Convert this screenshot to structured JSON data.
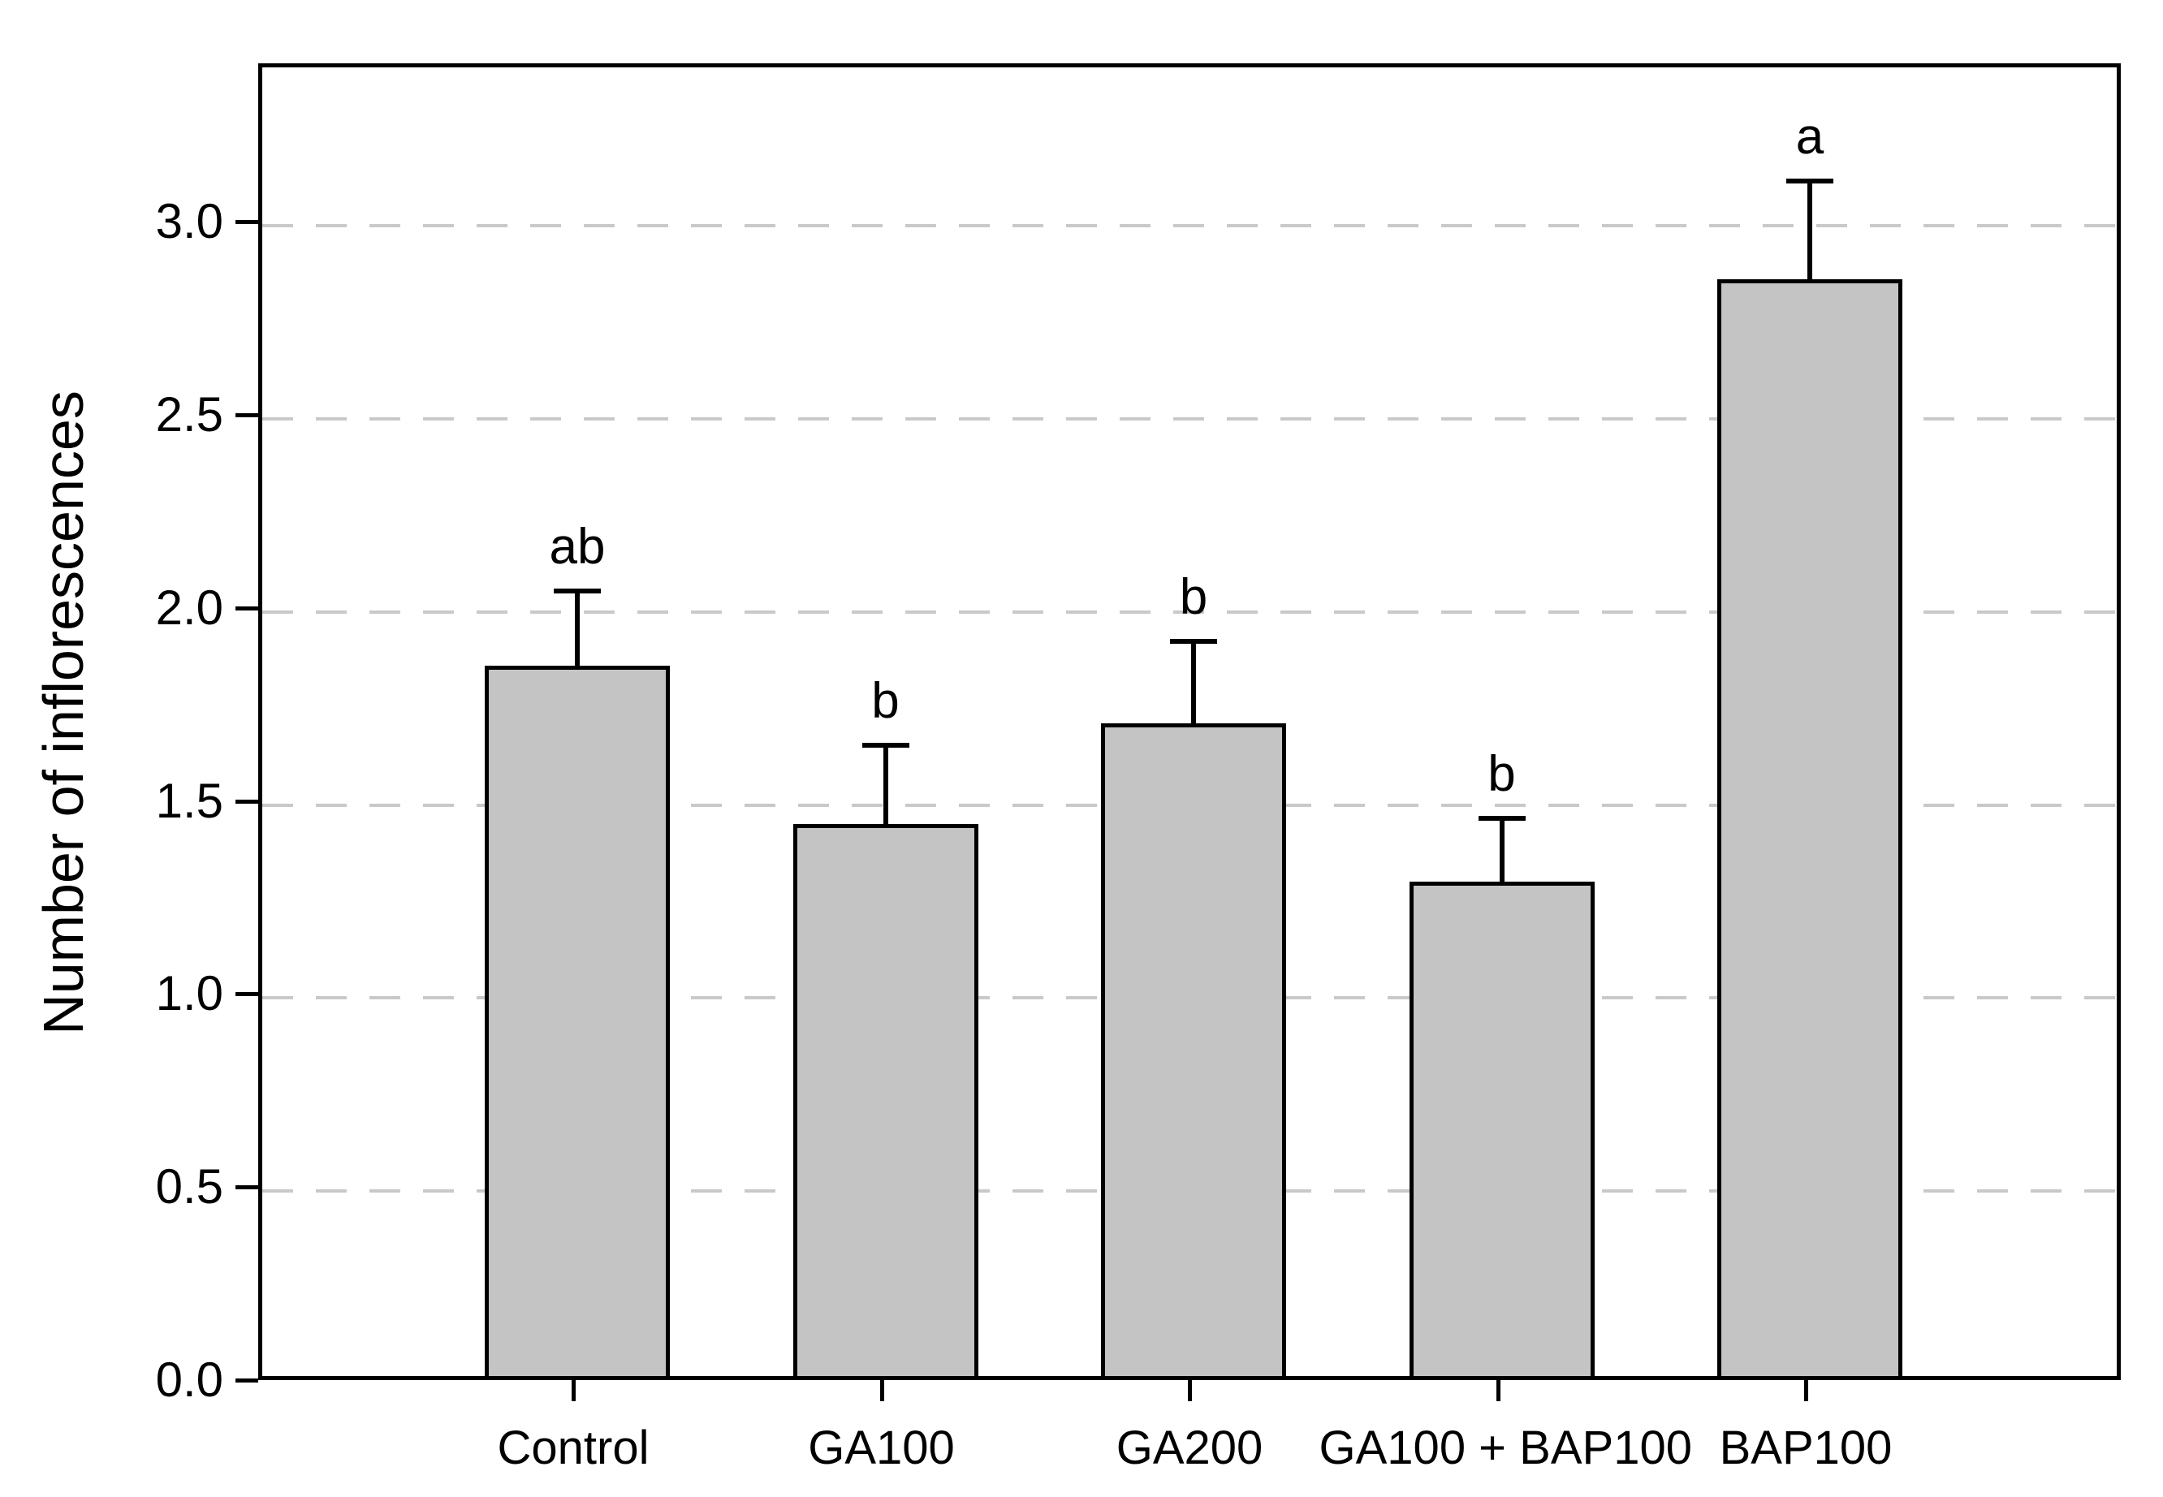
{
  "chart_data": {
    "type": "bar",
    "title": "",
    "xlabel": "",
    "ylabel": "Number of inflorescences",
    "categories": [
      "Control",
      "GA100",
      "GA200",
      "GA100 + BAP100",
      "BAP100"
    ],
    "values": [
      1.84,
      1.43,
      1.69,
      1.28,
      2.84
    ],
    "error_upper": [
      0.2,
      0.21,
      0.22,
      0.17,
      0.26
    ],
    "sig_letters": [
      "ab",
      "b",
      "b",
      "b",
      "a"
    ],
    "yticks": [
      "0.0",
      "0.5",
      "1.0",
      "1.5",
      "2.0",
      "2.5",
      "3.0"
    ],
    "ylim": [
      0,
      3.41
    ],
    "grid": "horizontal dashed lines at 0.5 intervals",
    "legend_position": "none",
    "colors": {
      "bar_fill": "#c4c4c4",
      "bar_border": "#000000",
      "grid_color": "#c9c9c9",
      "axis_color": "#000000",
      "text_color": "#000000",
      "background": "#ffffff"
    }
  }
}
